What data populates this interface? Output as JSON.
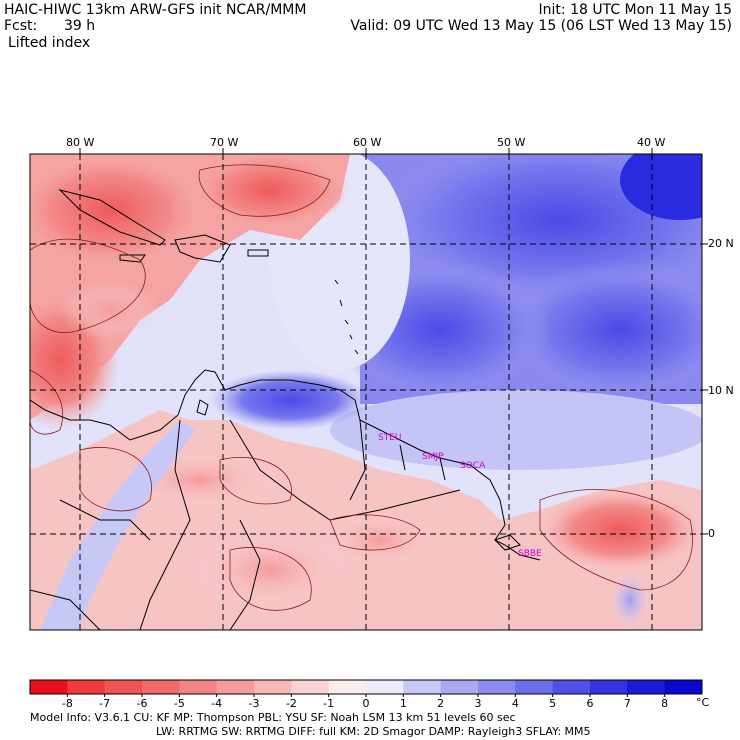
{
  "header": {
    "left_line1": "HAIC-HIWC 13km ARW-GFS init   NCAR/MMM",
    "fcst_label": "Fcst:",
    "fcst_value": "39 h",
    "field": "Lifted index",
    "init": "Init: 18 UTC Mon 11 May 15",
    "valid": "Valid: 09 UTC Wed 13 May 15 (06 LST Wed 13 May 15)"
  },
  "map": {
    "lon_labels": [
      "80 W",
      "70 W",
      "60 W",
      "50 W",
      "40 W"
    ],
    "lat_labels": [
      "20 N",
      "10 N",
      "0"
    ],
    "place_labels": [
      "STEU",
      "SMJP",
      "SOCA",
      "SBBE"
    ],
    "colors": {
      "negative_strong": "#e8202a",
      "negative_mid": "#f08080",
      "near_zero": "#ffffff",
      "positive_mid": "#8c8cf0",
      "positive_strong": "#1a1ae6",
      "place_label": "#cc00cc"
    }
  },
  "colorbar": {
    "ticks": [
      "-8",
      "-7",
      "-6",
      "-5",
      "-4",
      "-3",
      "-2",
      "-1",
      "0",
      "1",
      "2",
      "3",
      "4",
      "5",
      "6",
      "7",
      "8"
    ],
    "unit": "°C",
    "colors": [
      "#e8101c",
      "#ee3a3a",
      "#f05555",
      "#f26a6a",
      "#f48484",
      "#f69c9c",
      "#f8b8b8",
      "#fad2d2",
      "#fdecec",
      "#ececfd",
      "#c8c8f6",
      "#aaaaf2",
      "#8c8cee",
      "#6e6eea",
      "#5050e6",
      "#3434e0",
      "#1a1ad8",
      "#0808d0"
    ]
  },
  "footer": {
    "line1": "Model Info: V3.6.1    CU: KF      MP: Thompson     PBL: YSU       SF: Noah LSM     13 km    51 levels   60 sec",
    "line2": "LW: RRTMG     SW: RRTMG   DIFF: full    KM: 2D Smagor DAMP: Rayleigh3   SFLAY: MM5"
  }
}
